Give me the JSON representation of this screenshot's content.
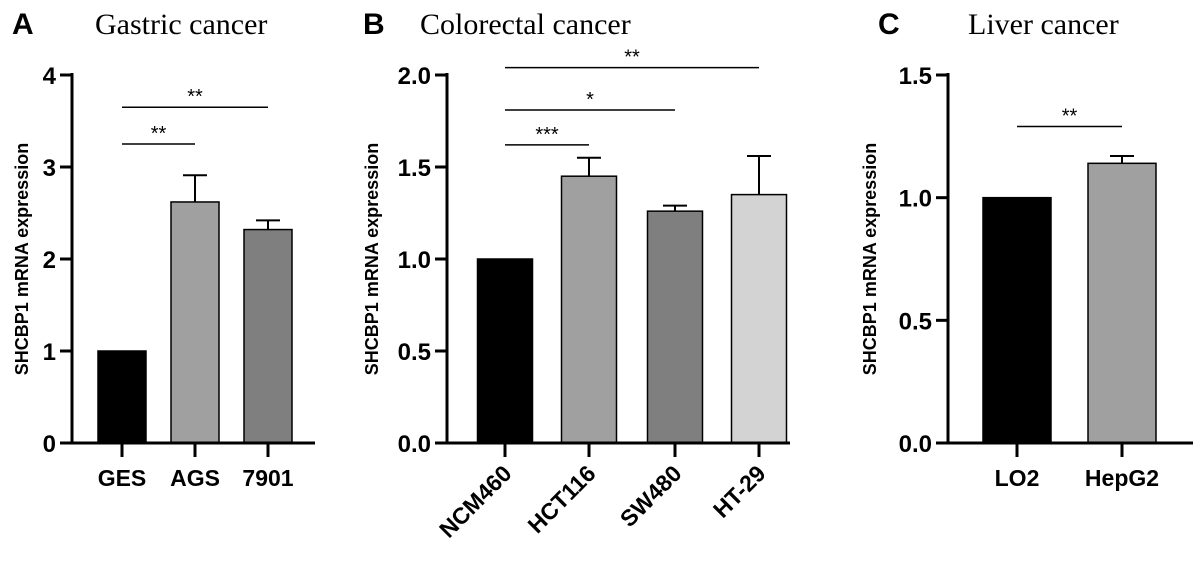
{
  "chart_data": [
    {
      "type": "bar",
      "panel": "A",
      "title": "Gastric cancer",
      "ylabel": "SHCBP1 mRNA expression",
      "xlabel": "",
      "ylim": [
        0,
        4
      ],
      "yticks": [
        "0",
        "1",
        "2",
        "3",
        "4"
      ],
      "ytick_values": [
        0,
        1,
        2,
        3,
        4
      ],
      "categories": [
        "GES",
        "AGS",
        "7901"
      ],
      "values": [
        1.0,
        2.62,
        2.32
      ],
      "errors": [
        0,
        0.29,
        0.1
      ],
      "colors": [
        "#000000",
        "#a0a0a0",
        "#7f7f7f"
      ],
      "rotate_labels": false,
      "significance": [
        {
          "from": 0,
          "to": 1,
          "label": "**",
          "y": 3.25
        },
        {
          "from": 0,
          "to": 2,
          "label": "**",
          "y": 3.65
        }
      ]
    },
    {
      "type": "bar",
      "panel": "B",
      "title": "Colorectal cancer",
      "ylabel": "SHCBP1 mRNA expression",
      "xlabel": "",
      "ylim": [
        0,
        2
      ],
      "yticks": [
        "0.0",
        "0.5",
        "1.0",
        "1.5",
        "2.0"
      ],
      "ytick_values": [
        0,
        0.5,
        1.0,
        1.5,
        2.0
      ],
      "categories": [
        "NCM460",
        "HCT116",
        "SW480",
        "HT-29"
      ],
      "values": [
        1.0,
        1.45,
        1.26,
        1.35
      ],
      "errors": [
        0,
        0.1,
        0.03,
        0.21
      ],
      "colors": [
        "#000000",
        "#a0a0a0",
        "#7f7f7f",
        "#d3d3d3"
      ],
      "rotate_labels": true,
      "significance": [
        {
          "from": 0,
          "to": 1,
          "label": "***",
          "y": 1.62
        },
        {
          "from": 0,
          "to": 2,
          "label": "*",
          "y": 1.81
        },
        {
          "from": 0,
          "to": 3,
          "label": "**",
          "y": 2.04
        }
      ]
    },
    {
      "type": "bar",
      "panel": "C",
      "title": "Liver cancer",
      "ylabel": "SHCBP1 mRNA expression",
      "xlabel": "",
      "ylim": [
        0,
        1.5
      ],
      "yticks": [
        "0.0",
        "0.5",
        "1.0",
        "1.5"
      ],
      "ytick_values": [
        0,
        0.5,
        1.0,
        1.5
      ],
      "categories": [
        "LO2",
        "HepG2"
      ],
      "values": [
        1.0,
        1.14
      ],
      "errors": [
        0,
        0.03
      ],
      "colors": [
        "#000000",
        "#a0a0a0"
      ],
      "rotate_labels": false,
      "significance": [
        {
          "from": 0,
          "to": 1,
          "label": "**",
          "y": 1.29
        }
      ]
    }
  ]
}
